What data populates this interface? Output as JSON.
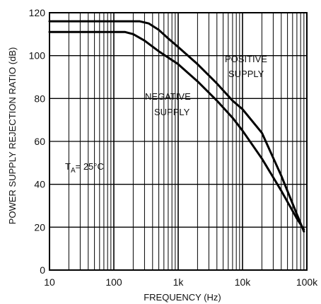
{
  "chart_data": {
    "type": "line",
    "x_scale": "log",
    "xlim": [
      10,
      100000
    ],
    "ylim": [
      0,
      120
    ],
    "grid": true,
    "xlabel": "FREQUENCY (Hz)",
    "ylabel": "POWER SUPPLY REJECTION RATIO (dB)",
    "x_ticks": [
      10,
      100,
      1000,
      10000,
      100000
    ],
    "x_tick_labels": [
      "10",
      "100",
      "1k",
      "10k",
      "100k"
    ],
    "y_ticks": [
      0,
      20,
      40,
      60,
      80,
      100,
      120
    ],
    "y_tick_labels": [
      "0",
      "20",
      "40",
      "60",
      "80",
      "100",
      "120"
    ],
    "series": [
      {
        "name": "POSITIVE SUPPLY",
        "points": [
          [
            10,
            116
          ],
          [
            100,
            116
          ],
          [
            250,
            116
          ],
          [
            350,
            115
          ],
          [
            500,
            112
          ],
          [
            700,
            108
          ],
          [
            1000,
            104
          ],
          [
            2000,
            96
          ],
          [
            4000,
            87
          ],
          [
            7000,
            79
          ],
          [
            10000,
            75
          ],
          [
            20000,
            64
          ],
          [
            40000,
            44
          ],
          [
            70000,
            26
          ],
          [
            90000,
            18
          ]
        ]
      },
      {
        "name": "NEGATIVE SUPPLY",
        "points": [
          [
            10,
            111
          ],
          [
            100,
            111
          ],
          [
            150,
            111
          ],
          [
            200,
            110
          ],
          [
            300,
            107
          ],
          [
            500,
            102
          ],
          [
            1000,
            96
          ],
          [
            2000,
            88
          ],
          [
            4000,
            79
          ],
          [
            7000,
            71
          ],
          [
            10000,
            65
          ],
          [
            20000,
            52
          ],
          [
            40000,
            37
          ],
          [
            70000,
            24
          ],
          [
            90000,
            19
          ]
        ]
      }
    ],
    "annotations": {
      "positive_line1": "POSITIVE",
      "positive_line2": "SUPPLY",
      "negative_line1": "NEGATIVE",
      "negative_line2": "SUPPLY",
      "ta_prefix": "T",
      "ta_sub": "A",
      "ta_value": "= 25°C"
    }
  }
}
